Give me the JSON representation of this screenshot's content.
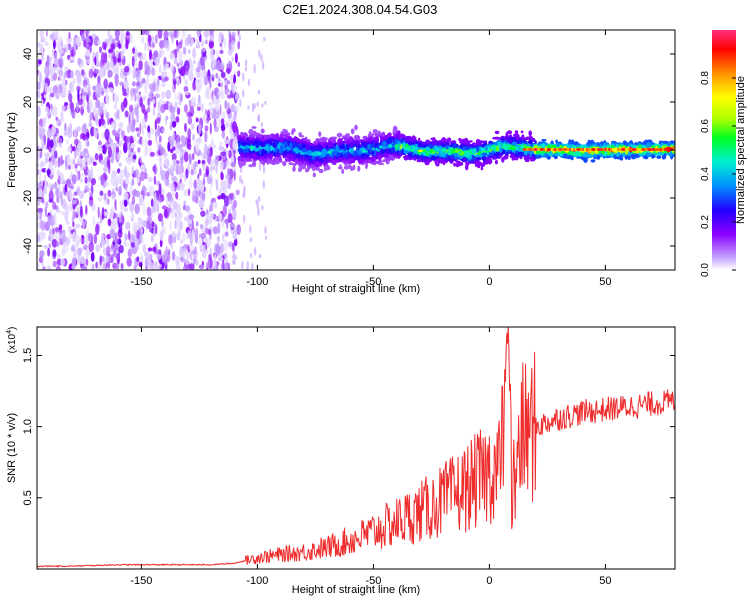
{
  "title": "C2E1.2024.308.04.54.G03",
  "chart_data": [
    {
      "type": "heatmap",
      "title": "C2E1.2024.308.04.54.G03",
      "xlabel": "Height of straight line (km)",
      "ylabel": "Frequency (Hz)",
      "xlim": [
        -195,
        80
      ],
      "ylim": [
        -50,
        50
      ],
      "x_ticks": [
        -150,
        -100,
        -50,
        0,
        50
      ],
      "y_ticks": [
        -40,
        -20,
        0,
        20,
        40
      ],
      "colorbar": {
        "label": "Normalized spectral amplitude",
        "range": [
          0,
          1
        ],
        "ticks": [
          0,
          0.2,
          0.4,
          0.6,
          0.8
        ],
        "colormap": [
          "#ffffff",
          "#c6a8ff",
          "#8a00ff",
          "#2000ff",
          "#0090ff",
          "#00f0d0",
          "#00ff20",
          "#b0ff00",
          "#ffff00",
          "#ff9000",
          "#ff0000",
          "#ff3080"
        ]
      },
      "regions": [
        {
          "x_range": [
            -195,
            -108
          ],
          "freq_range": [
            -50,
            50
          ],
          "amplitude_range": [
            0.02,
            0.12
          ],
          "description": ""
        },
        {
          "x_range": [
            -108,
            -40
          ],
          "center_freq": 0,
          "half_width": 7,
          "amplitude_range": [
            0.1,
            0.45
          ]
        },
        {
          "x_range": [
            -40,
            20
          ],
          "center_freq": 0,
          "half_width": 5,
          "amplitude_range": [
            0.15,
            0.65
          ]
        },
        {
          "x_range": [
            20,
            80
          ],
          "center_freq": 0,
          "half_width": 3,
          "amplitude_range": [
            0.3,
            0.95
          ]
        }
      ]
    },
    {
      "type": "line",
      "xlabel": "Height of straight line (km)",
      "ylabel": "SNR (10 * v/v)",
      "y_scale_label": "(x10",
      "y_scale_exponent": "4",
      "y_scale_suffix": ")",
      "xlim": [
        -195,
        80
      ],
      "ylim": [
        0,
        1.7
      ],
      "x_ticks": [
        -150,
        -100,
        -50,
        0,
        50
      ],
      "y_ticks": [
        0.5,
        1.0,
        1.5
      ],
      "y_tick_labels": [
        "0.5",
        "1.0",
        "1.5"
      ],
      "color": "#ee2c2c",
      "series": [
        {
          "x": [
            -195,
            -180,
            -160,
            -140,
            -120,
            -110,
            -100,
            -90,
            -80,
            -70,
            -60,
            -50,
            -40,
            -30,
            -20,
            -10,
            0,
            5,
            8,
            10,
            12,
            15,
            20,
            30,
            40,
            50,
            60,
            70,
            80
          ],
          "values": [
            0.02,
            0.02,
            0.03,
            0.03,
            0.03,
            0.04,
            0.08,
            0.1,
            0.12,
            0.15,
            0.2,
            0.26,
            0.33,
            0.4,
            0.48,
            0.57,
            0.68,
            0.74,
            1.6,
            0.62,
            0.88,
            0.95,
            1.0,
            1.06,
            1.1,
            1.12,
            1.14,
            1.16,
            1.18
          ]
        }
      ]
    }
  ]
}
